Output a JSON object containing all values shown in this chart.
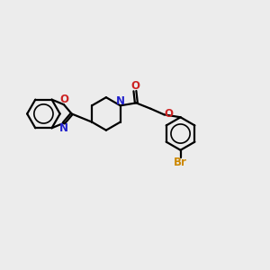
{
  "bg_color": "#ececec",
  "bond_color": "#000000",
  "N_color": "#2222cc",
  "O_color": "#cc2222",
  "Br_color": "#cc8800",
  "lw": 1.6,
  "dbo": 0.05,
  "xlim": [
    0,
    10
  ],
  "ylim": [
    0,
    10
  ]
}
